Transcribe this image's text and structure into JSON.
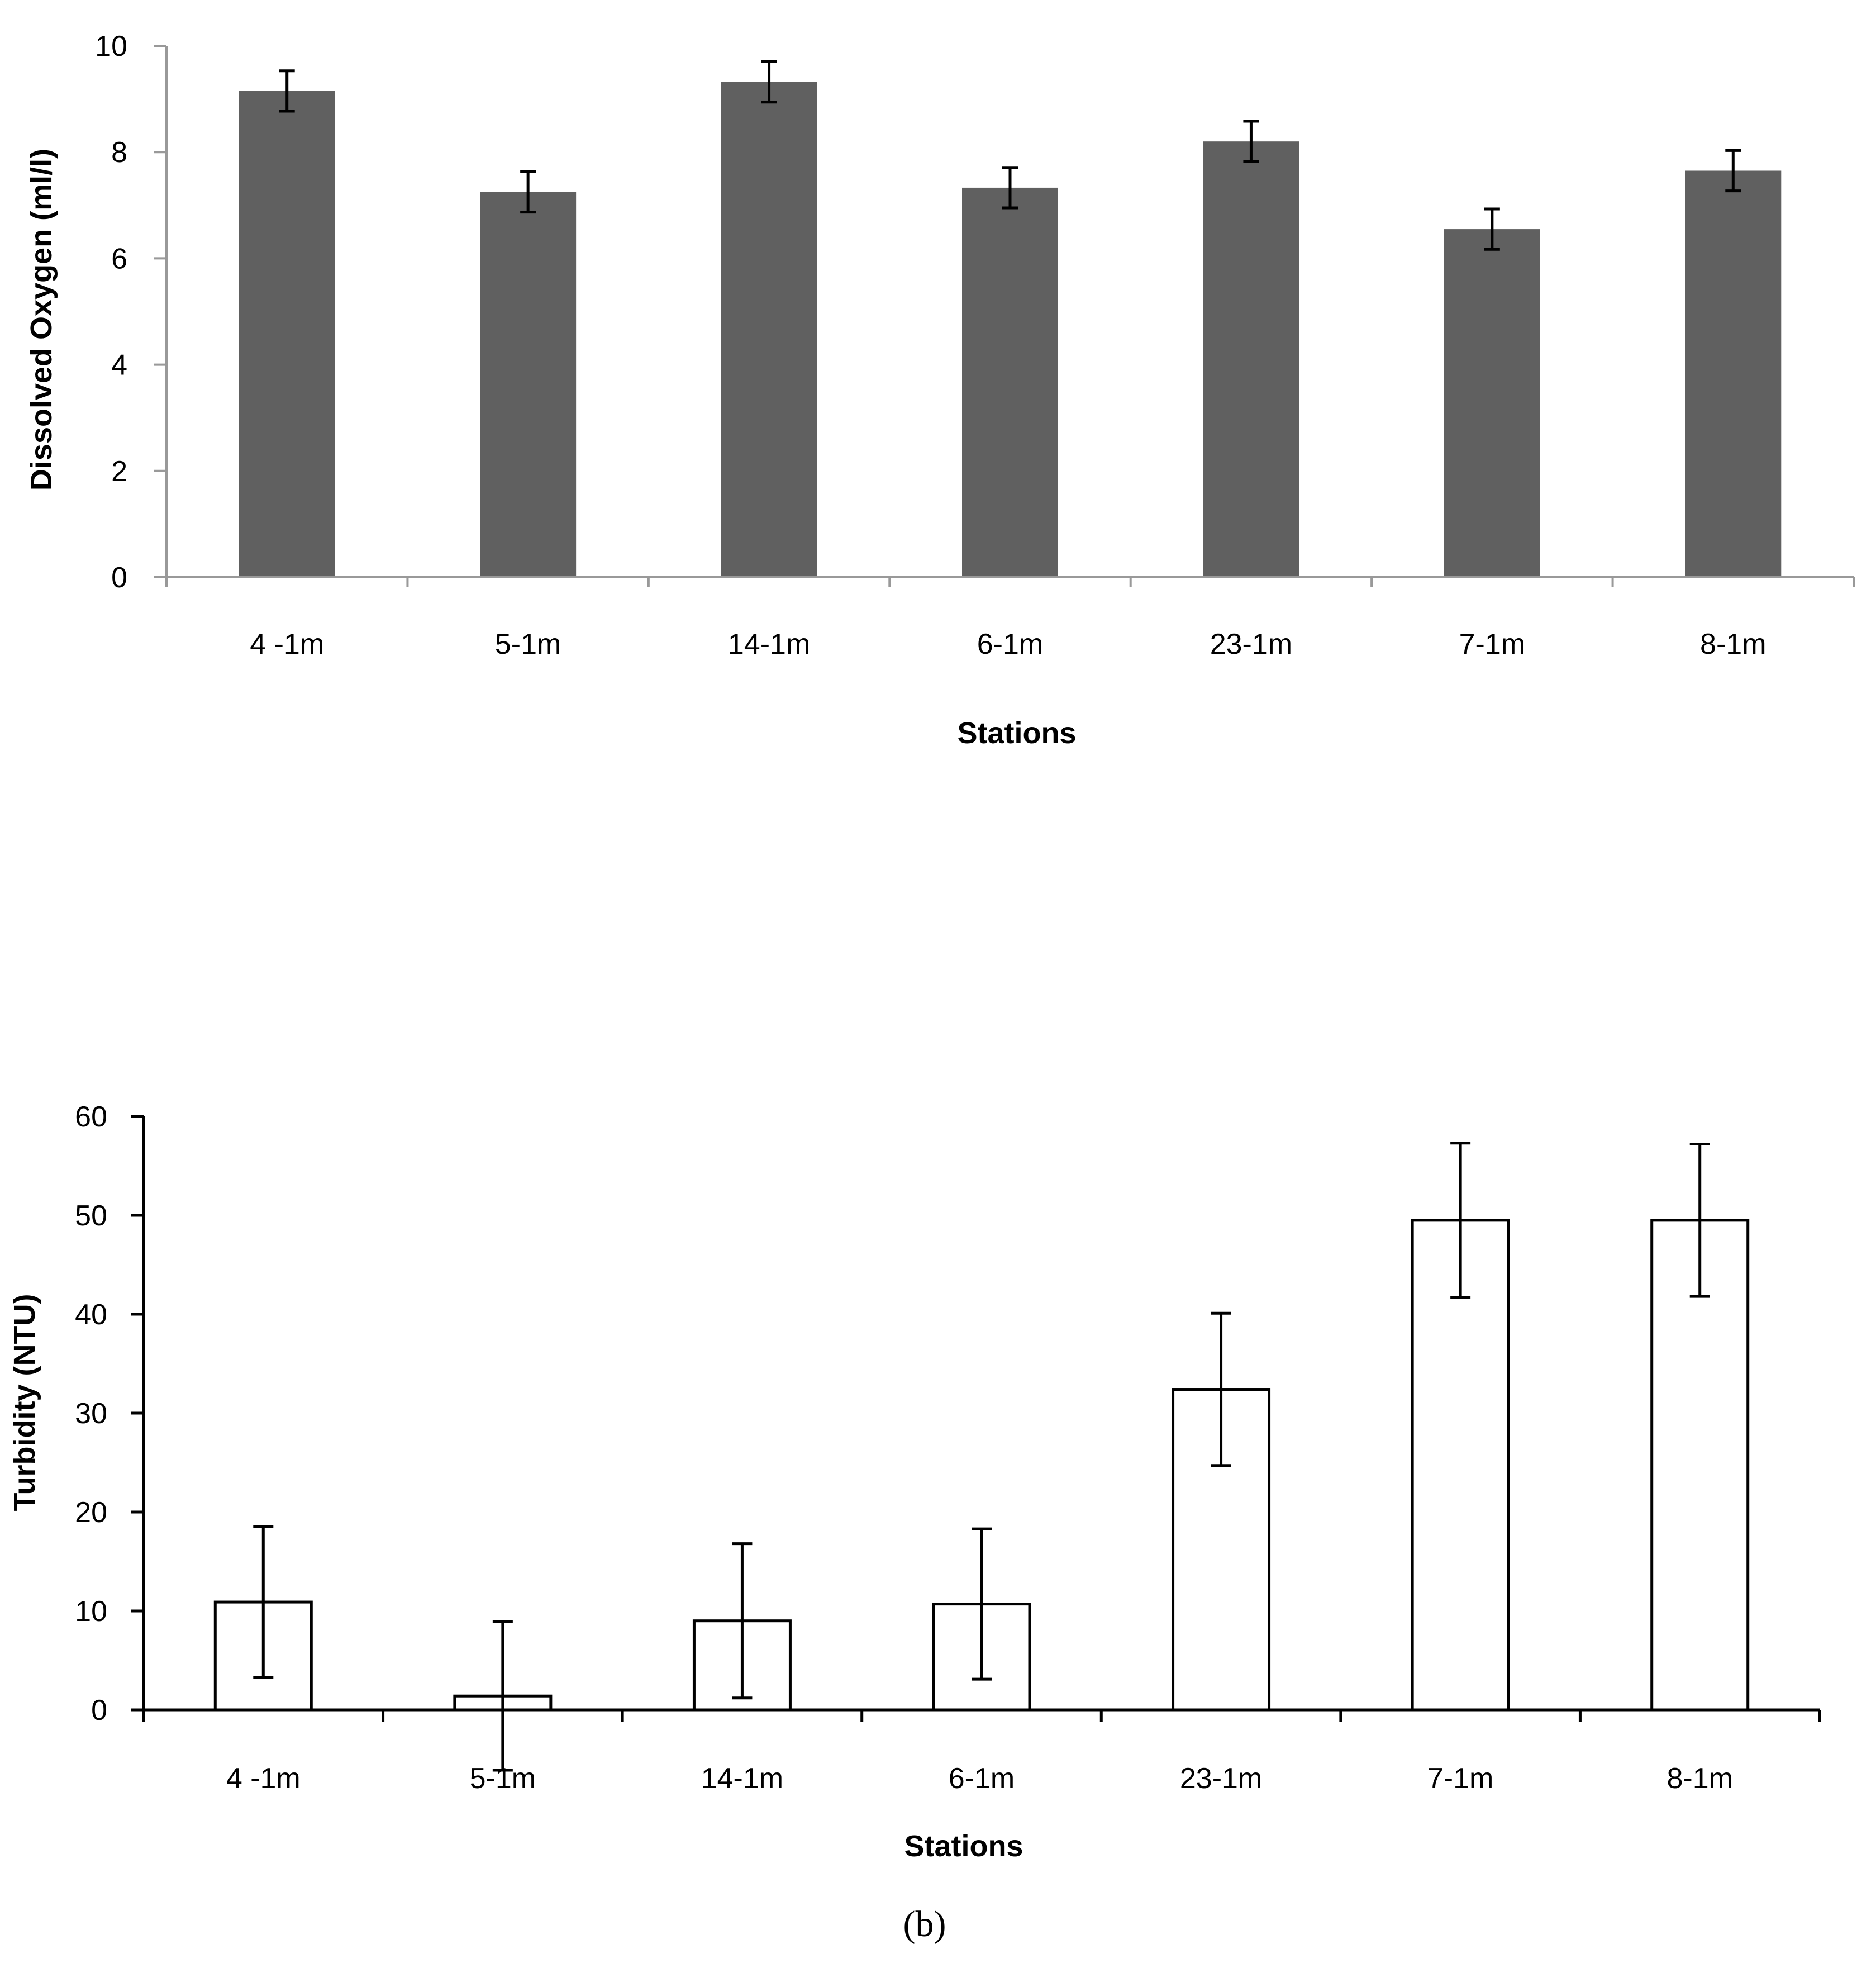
{
  "chart_data": [
    {
      "type": "bar",
      "categories": [
        "4 -1m",
        "5-1m",
        "14-1m",
        "6-1m",
        "23-1m",
        "7-1m",
        "8-1m"
      ],
      "values": [
        9.15,
        7.25,
        9.32,
        7.33,
        8.2,
        6.55,
        7.65
      ],
      "errors": [
        0.38,
        0.38,
        0.38,
        0.38,
        0.38,
        0.38,
        0.38
      ],
      "title": "",
      "xlabel": "Stations",
      "ylabel": "Dissolved Oxygen (ml/l)",
      "ylim": [
        0,
        10
      ],
      "yticks": [
        "0",
        "2",
        "4",
        "6",
        "8",
        "10"
      ],
      "bar_color": "#606060",
      "axis_color": "#999999"
    },
    {
      "type": "bar",
      "categories": [
        "4 -1m",
        "5-1m",
        "14-1m",
        "6-1m",
        "23-1m",
        "7-1m",
        "8-1m"
      ],
      "values": [
        10.9,
        1.4,
        9.0,
        10.7,
        32.4,
        49.5,
        49.5
      ],
      "errors": [
        7.6,
        7.5,
        7.8,
        7.6,
        7.7,
        7.8,
        7.7
      ],
      "title": "",
      "xlabel": "Stations",
      "ylabel": "Turbidity (NTU)",
      "ylim": [
        0,
        60
      ],
      "yticks": [
        "0",
        "10",
        "20",
        "30",
        "40",
        "50",
        "60"
      ],
      "bar_color": "#ffffff",
      "axis_color": "#000000"
    }
  ],
  "caption": "(b)"
}
